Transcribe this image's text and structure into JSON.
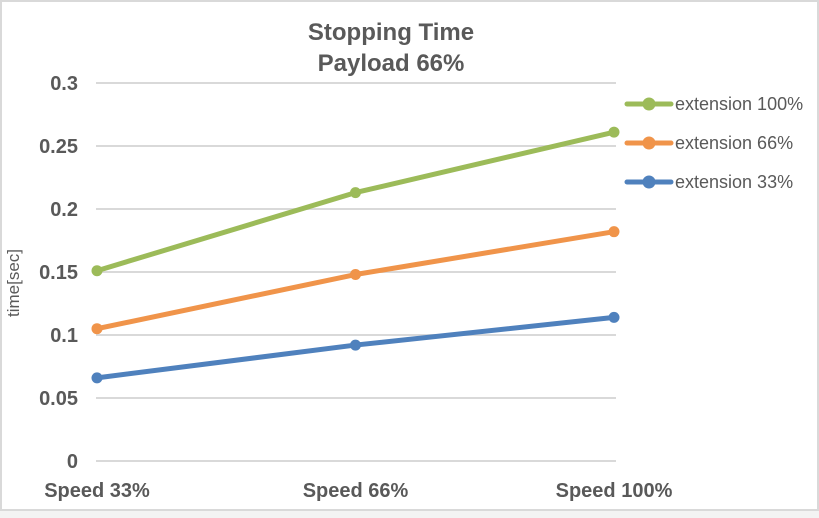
{
  "chart_data": {
    "type": "line",
    "title": "Stopping Time",
    "subtitle": "Payload 66%",
    "ylabel": "time[sec]",
    "xlabel": "",
    "categories": [
      "Speed 33%",
      "Speed 66%",
      "Speed 100%"
    ],
    "series": [
      {
        "name": "extension 100%",
        "color": "#9CBB59",
        "values": [
          0.151,
          0.213,
          0.261
        ]
      },
      {
        "name": "extension 66%",
        "color": "#F0944A",
        "values": [
          0.105,
          0.148,
          0.182
        ]
      },
      {
        "name": "extension 33%",
        "color": "#4F81BD",
        "values": [
          0.066,
          0.092,
          0.114
        ]
      }
    ],
    "ylim": [
      0,
      0.3
    ],
    "yticks": [
      {
        "value": 0,
        "label": "0"
      },
      {
        "value": 0.05,
        "label": "0.05"
      },
      {
        "value": 0.1,
        "label": "0.1"
      },
      {
        "value": 0.15,
        "label": "0.15"
      },
      {
        "value": 0.2,
        "label": "0.2"
      },
      {
        "value": 0.25,
        "label": "0.25"
      },
      {
        "value": 0.3,
        "label": "0.3"
      }
    ],
    "grid": true,
    "marker": "circle",
    "legend_position": "right"
  },
  "theme": {
    "text_color": "#595959",
    "grid_color": "#D9D9D9",
    "border_color": "#D9D9D9",
    "background": "#FFFFFF"
  }
}
